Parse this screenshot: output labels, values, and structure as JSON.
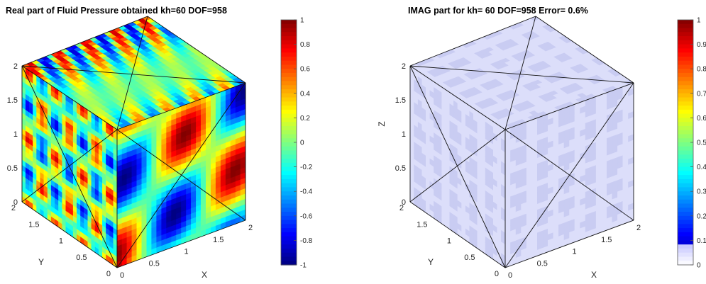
{
  "chart_data": [
    {
      "type": "heatmap",
      "title": "Real part of Fluid Pressure obtained kh=60  DOF=958",
      "subtype": "3d-cube-surface",
      "colormap": "jet",
      "colorbar": {
        "range": [
          -1,
          1
        ],
        "ticks": [
          "1",
          "0.8",
          "0.6",
          "0.4",
          "0.2",
          "0",
          "-0.2",
          "-0.4",
          "-0.6",
          "-0.8",
          "-1"
        ]
      },
      "axes": {
        "x": {
          "label": "X",
          "ticks": [
            "0",
            "0.5",
            "1",
            "1.5",
            "2"
          ],
          "range": [
            0,
            2
          ]
        },
        "y": {
          "label": "Y",
          "ticks": [
            "0",
            "0.5",
            "1",
            "1.5",
            "2"
          ],
          "range": [
            0,
            2
          ]
        },
        "z": {
          "label": "",
          "ticks": [
            "0",
            "0.5",
            "1",
            "1.5",
            "2"
          ],
          "range": [
            0,
            2
          ]
        }
      },
      "field": "oscillating wave pattern, values spanning -1 to 1"
    },
    {
      "type": "heatmap",
      "title": "IMAG part  for kh= 60  DOF=958  Error= 0.6%",
      "subtype": "3d-cube-surface",
      "colormap": "jet",
      "colorbar": {
        "range": [
          0,
          1
        ],
        "ticks": [
          "1",
          "0.9",
          "0.8",
          "0.7",
          "0.6",
          "0.5",
          "0.4",
          "0.3",
          "0.2",
          "0.1",
          "0"
        ]
      },
      "axes": {
        "x": {
          "label": "X",
          "ticks": [
            "0",
            "0.5",
            "1",
            "1.5",
            "2"
          ],
          "range": [
            0,
            2
          ]
        },
        "y": {
          "label": "Y",
          "ticks": [
            "0",
            "0.5",
            "1",
            "1.5",
            "2"
          ],
          "range": [
            0,
            2
          ]
        },
        "z": {
          "label": "Z",
          "ticks": [
            "0",
            "0.5",
            "1",
            "1.5",
            "2"
          ],
          "range": [
            0,
            2
          ]
        }
      },
      "field": "near-zero values (faint speckle)"
    }
  ]
}
